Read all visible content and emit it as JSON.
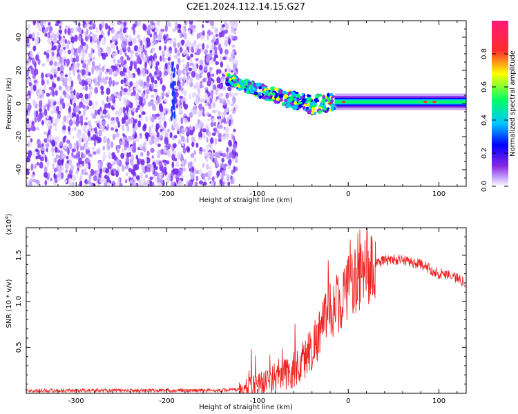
{
  "title": "C2E1.2024.112.14.15.G27",
  "chart_data": [
    {
      "type": "heatmap",
      "xlabel": "Height of straight line (km)",
      "ylabel": "Frequency (Hz)",
      "xlim": [
        -355,
        130
      ],
      "ylim": [
        -50,
        50
      ],
      "x_ticks": [
        -300,
        -200,
        -100,
        0,
        100
      ],
      "y_ticks": [
        -40,
        -20,
        0,
        20,
        40
      ],
      "colorbar": {
        "label": "Normalized spectral amplitude",
        "range": [
          0,
          1
        ],
        "ticks": [
          0.0,
          0.2,
          0.4,
          0.6,
          0.8
        ],
        "colormap": [
          "#ffffff",
          "#c6a8ff",
          "#8a2be2",
          "#0000ff",
          "#00c8ff",
          "#00ff66",
          "#ffff00",
          "#ff2d2d",
          "#ff1a7a"
        ]
      },
      "features": {
        "noise_region_x": [
          -355,
          -135
        ],
        "signal_trace": [
          [
            -135,
            15
          ],
          [
            -120,
            12
          ],
          [
            -100,
            8
          ],
          [
            -80,
            5
          ],
          [
            -60,
            2
          ],
          [
            -40,
            -1
          ],
          [
            -20,
            0
          ],
          [
            0,
            1.5
          ],
          [
            20,
            1
          ],
          [
            60,
            1
          ],
          [
            100,
            1
          ],
          [
            130,
            1
          ]
        ]
      }
    },
    {
      "type": "line",
      "xlabel": "Height of straight line (km)",
      "ylabel": "SNR (10 * v/v)",
      "y_multiplier": "(x10",
      "y_multiplier_exp": "4",
      "y_multiplier_close": ")",
      "xlim": [
        -355,
        130
      ],
      "ylim": [
        0,
        1.8
      ],
      "x_ticks": [
        -300,
        -200,
        -100,
        0,
        100
      ],
      "y_ticks": [
        0.5,
        1.0,
        1.5
      ],
      "y_tick_labels": [
        "0.5",
        "1.0",
        "1.5"
      ],
      "series": [
        {
          "color": "#ee2222",
          "points": [
            [
              -355,
              0.03
            ],
            [
              -300,
              0.03
            ],
            [
              -250,
              0.03
            ],
            [
              -200,
              0.03
            ],
            [
              -150,
              0.03
            ],
            [
              -120,
              0.04
            ],
            [
              -100,
              0.1
            ],
            [
              -80,
              0.15
            ],
            [
              -60,
              0.25
            ],
            [
              -50,
              0.35
            ],
            [
              -40,
              0.5
            ],
            [
              -30,
              0.7
            ],
            [
              -20,
              0.9
            ],
            [
              -10,
              1.0
            ],
            [
              0,
              1.15
            ],
            [
              10,
              1.25
            ],
            [
              20,
              1.3
            ],
            [
              30,
              1.4
            ],
            [
              40,
              1.45
            ],
            [
              60,
              1.45
            ],
            [
              80,
              1.4
            ],
            [
              90,
              1.35
            ],
            [
              100,
              1.3
            ],
            [
              110,
              1.3
            ],
            [
              120,
              1.25
            ],
            [
              130,
              1.2
            ]
          ]
        }
      ]
    }
  ]
}
